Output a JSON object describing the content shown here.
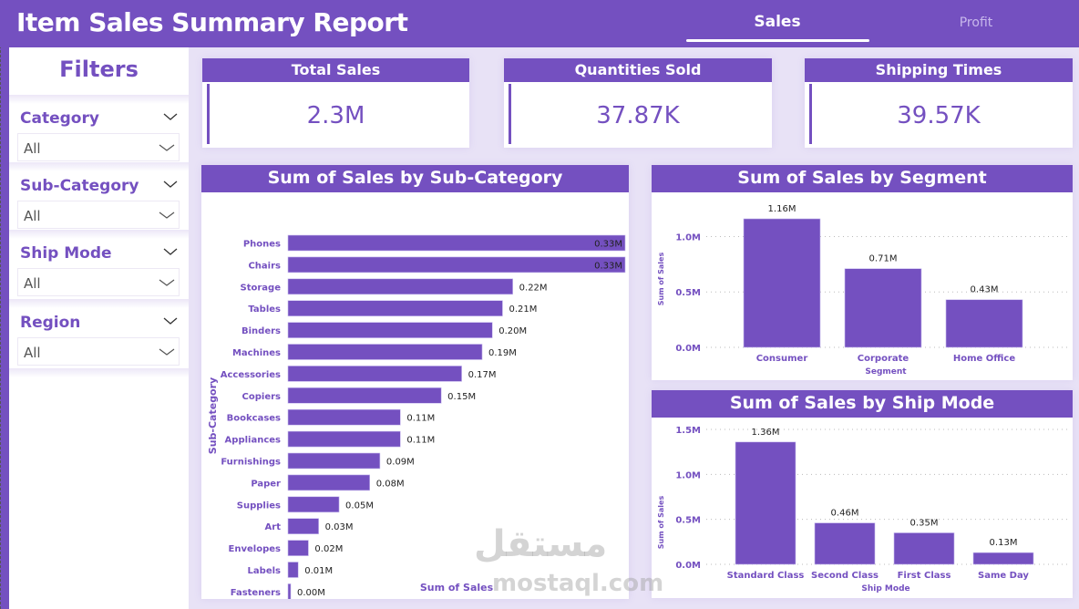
{
  "header": {
    "title": "Item Sales Summary Report",
    "tabs": [
      {
        "label": "Sales",
        "active": true
      },
      {
        "label": "Profit",
        "active": false
      }
    ]
  },
  "colors": {
    "accent": "#7450c0",
    "background": "#e8e2f6",
    "label_text": "#222222"
  },
  "filters": {
    "title": "Filters",
    "items": [
      {
        "label": "Category",
        "value": "All"
      },
      {
        "label": "Sub-Category",
        "value": "All"
      },
      {
        "label": "Ship Mode",
        "value": "All"
      },
      {
        "label": "Region",
        "value": "All"
      }
    ]
  },
  "kpis": [
    {
      "label": "Total Sales",
      "value": "2.3M"
    },
    {
      "label": "Quantities Sold",
      "value": "37.87K"
    },
    {
      "label": "Shipping Times",
      "value": "39.57K"
    }
  ],
  "watermark": {
    "text": "mostaql.com",
    "arabic": "مستقل"
  },
  "chart_data": [
    {
      "type": "bar",
      "orientation": "horizontal",
      "title": "Sum of Sales by Sub-Category",
      "xlabel": "Sum of Sales",
      "ylabel": "Sub-Category",
      "categories": [
        "Phones",
        "Chairs",
        "Storage",
        "Tables",
        "Binders",
        "Machines",
        "Accessories",
        "Copiers",
        "Bookcases",
        "Appliances",
        "Furnishings",
        "Paper",
        "Supplies",
        "Art",
        "Envelopes",
        "Labels",
        "Fasteners"
      ],
      "values": [
        0.33,
        0.33,
        0.22,
        0.21,
        0.2,
        0.19,
        0.17,
        0.15,
        0.11,
        0.11,
        0.09,
        0.08,
        0.05,
        0.03,
        0.02,
        0.01,
        0.0
      ],
      "data_labels": [
        "0.33M",
        "0.33M",
        "0.22M",
        "0.21M",
        "0.20M",
        "0.19M",
        "0.17M",
        "0.15M",
        "0.11M",
        "0.11M",
        "0.09M",
        "0.08M",
        "0.05M",
        "0.03M",
        "0.02M",
        "0.01M",
        "0.00M"
      ],
      "units": "M",
      "xlim": [
        0,
        0.33
      ],
      "grid": false
    },
    {
      "type": "bar",
      "title": "Sum of Sales by Segment",
      "xlabel": "Segment",
      "ylabel": "Sum of Sales",
      "categories": [
        "Consumer",
        "Corporate",
        "Home Office"
      ],
      "values": [
        1.16,
        0.71,
        0.43
      ],
      "data_labels": [
        "1.16M",
        "0.71M",
        "0.43M"
      ],
      "yticks": [
        "0.0M",
        "0.5M",
        "1.0M"
      ],
      "ytick_values": [
        0,
        0.5,
        1.0
      ],
      "ylim": [
        0,
        1.16
      ],
      "units": "M",
      "grid": true
    },
    {
      "type": "bar",
      "title": "Sum of Sales by Ship Mode",
      "xlabel": "Ship Mode",
      "ylabel": "Sum of Sales",
      "categories": [
        "Standard Class",
        "Second Class",
        "First Class",
        "Same Day"
      ],
      "values": [
        1.36,
        0.46,
        0.35,
        0.13
      ],
      "data_labels": [
        "1.36M",
        "0.46M",
        "0.35M",
        "0.13M"
      ],
      "yticks": [
        "0.0M",
        "0.5M",
        "1.0M",
        "1.5M"
      ],
      "ytick_values": [
        0,
        0.5,
        1.0,
        1.5
      ],
      "ylim": [
        0,
        1.5
      ],
      "units": "M",
      "grid": true
    }
  ]
}
